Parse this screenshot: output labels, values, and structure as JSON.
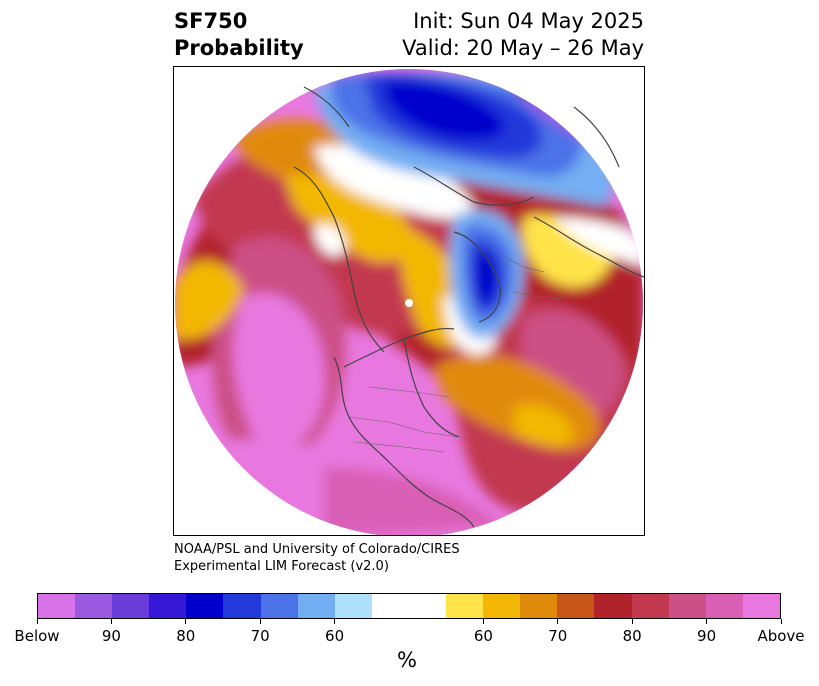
{
  "header": {
    "title_line1": "SF750",
    "title_line2": "Probability",
    "init": "Init: Sun 04 May 2025",
    "valid": "Valid: 20 May – 26 May"
  },
  "credit": {
    "line1": "NOAA/PSL and University of Colorado/CIRES",
    "line2": "Experimental LIM Forecast (v2.0)"
  },
  "colorbar": {
    "colors": [
      "#d772e8",
      "#9b59e0",
      "#6a3ddb",
      "#3717d6",
      "#0000cc",
      "#2339d9",
      "#4c72e8",
      "#74aef2",
      "#aee0fb",
      "#ffffff",
      "#ffffff",
      "#ffe34a",
      "#f2b705",
      "#e08a0c",
      "#c85618",
      "#b2222a",
      "#c2394f",
      "#cc5085",
      "#d95fb5",
      "#e878df"
    ],
    "labels": [
      "Below",
      "90",
      "80",
      "70",
      "60",
      "60",
      "70",
      "80",
      "90",
      "Above"
    ],
    "unit": "%"
  }
}
